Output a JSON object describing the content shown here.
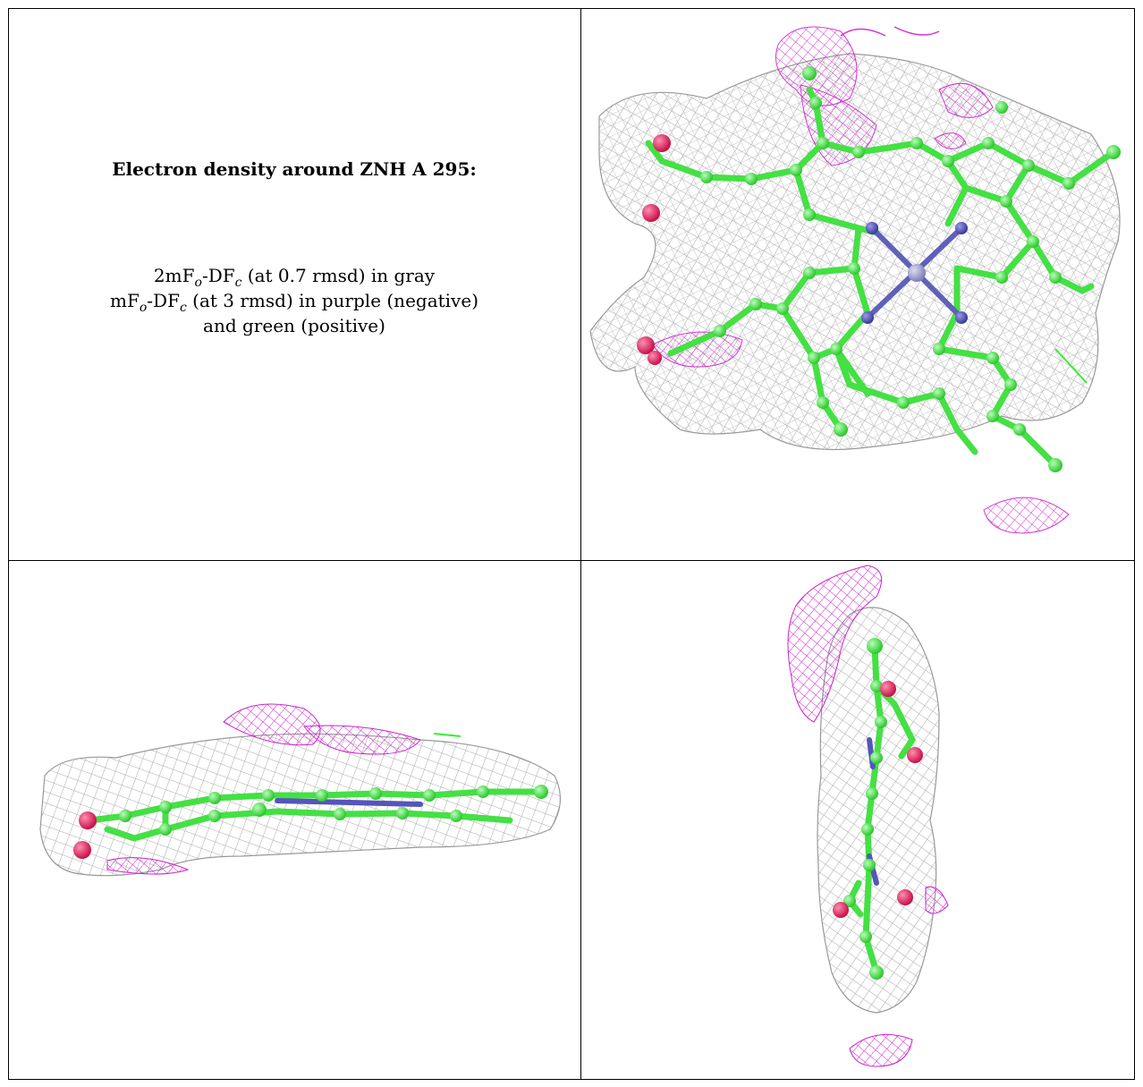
{
  "caption": {
    "title": "Electron density around ZNH A 295:",
    "line1": {
      "a": "2mF",
      "a_sub": "o",
      "b": "-DF",
      "b_sub": "c",
      "rest": " (at 0.7 rmsd) in gray"
    },
    "line2": {
      "a": "mF",
      "a_sub": "o",
      "b": "-DF",
      "b_sub": "c",
      "rest": " (at 3 rmsd) in purple (negative)"
    },
    "line3": "and green (positive)"
  },
  "colors": {
    "mesh_2fofc": "#a8a8a8",
    "mesh_negative": "#cc22cc",
    "mesh_positive": "#33ee33",
    "carbon": "#44e044",
    "nitrogen": "#5555bb",
    "oxygen": "#e0245e",
    "zinc": "#9a9ac8"
  },
  "views": [
    "top-view",
    "side-view",
    "end-view"
  ]
}
